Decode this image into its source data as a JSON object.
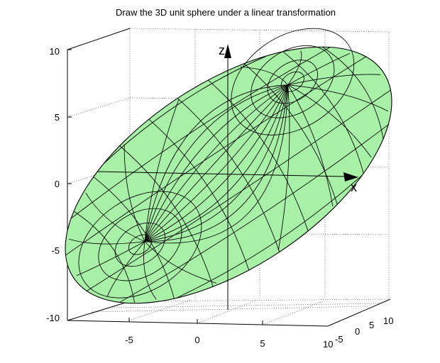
{
  "chart_data": {
    "type": "surface",
    "title": "Draw the 3D unit sphere under a linear transformation",
    "surface_color": "#a8f0a8",
    "edge_color": "#000000",
    "axis_labels": {
      "x": "x",
      "z": "z"
    },
    "x_ticks": [
      "-5",
      "0",
      "5"
    ],
    "y_ticks": [
      "10",
      "-5",
      "0",
      "5",
      "10"
    ],
    "z_ticks": [
      "10",
      "5",
      "0",
      "-5",
      "-10"
    ],
    "xlim": [
      -10,
      10
    ],
    "ylim": [
      -10,
      10
    ],
    "zlim": [
      -10,
      10
    ],
    "grid": true
  }
}
